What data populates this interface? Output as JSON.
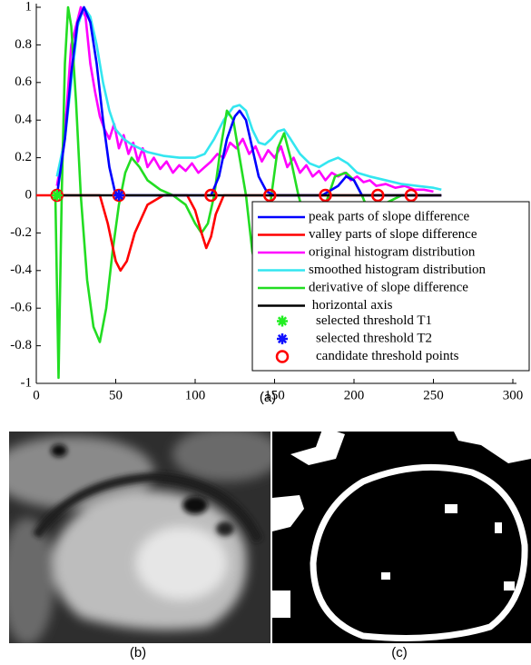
{
  "chart_data": {
    "type": "line",
    "xlim": [
      0,
      300
    ],
    "xticks": [
      0,
      50,
      100,
      150,
      200,
      250,
      300
    ],
    "ylim": [
      -1,
      1
    ],
    "yticks": [
      -1,
      -0.8,
      -0.6,
      -0.4,
      -0.2,
      0,
      0.2,
      0.4,
      0.6,
      0.8,
      1
    ],
    "legend": "lower right",
    "series": [
      {
        "name": "peak parts of slope difference",
        "color": "#0000ff",
        "style": "line",
        "x": [
          13,
          18,
          22,
          26,
          30,
          34,
          38,
          42,
          46,
          50,
          60,
          100,
          110,
          115,
          120,
          125,
          128,
          132,
          136,
          140,
          145,
          150,
          180,
          190,
          195,
          200,
          205,
          215,
          255
        ],
        "values": [
          0,
          0.3,
          0.65,
          0.92,
          1,
          0.92,
          0.7,
          0.4,
          0.15,
          0,
          0,
          0,
          0,
          0.1,
          0.3,
          0.42,
          0.45,
          0.4,
          0.25,
          0.1,
          0.02,
          0,
          0,
          0.05,
          0.1,
          0.08,
          0,
          0,
          0
        ]
      },
      {
        "name": "valley parts of slope difference",
        "color": "#ff0000",
        "style": "line",
        "x": [
          0,
          13,
          40,
          45,
          50,
          53,
          57,
          62,
          70,
          80,
          95,
          100,
          104,
          107,
          110,
          113,
          118,
          150,
          255
        ],
        "values": [
          0,
          0,
          0,
          -0.15,
          -0.35,
          -0.4,
          -0.35,
          -0.2,
          -0.05,
          0,
          0,
          -0.08,
          -0.2,
          -0.28,
          -0.22,
          -0.1,
          0,
          0,
          0
        ]
      },
      {
        "name": "original histogram distribution",
        "color": "#ff00ff",
        "style": "line",
        "x": [
          13,
          16,
          19,
          22,
          25,
          28,
          31,
          34,
          37,
          40,
          43,
          46,
          49,
          52,
          55,
          58,
          61,
          64,
          67,
          70,
          74,
          78,
          82,
          86,
          90,
          94,
          98,
          102,
          106,
          110,
          114,
          118,
          122,
          126,
          130,
          134,
          138,
          142,
          146,
          150,
          154,
          158,
          162,
          166,
          170,
          174,
          178,
          182,
          186,
          190,
          194,
          198,
          202,
          206,
          210,
          214,
          220,
          226,
          232,
          238,
          244,
          250
        ],
        "values": [
          0.05,
          0.2,
          0.45,
          0.8,
          0.9,
          1,
          0.95,
          0.7,
          0.55,
          0.42,
          0.35,
          0.3,
          0.38,
          0.25,
          0.32,
          0.22,
          0.28,
          0.18,
          0.25,
          0.15,
          0.2,
          0.14,
          0.18,
          0.12,
          0.16,
          0.13,
          0.17,
          0.12,
          0.15,
          0.18,
          0.22,
          0.2,
          0.28,
          0.25,
          0.3,
          0.22,
          0.26,
          0.18,
          0.24,
          0.2,
          0.26,
          0.15,
          0.2,
          0.12,
          0.16,
          0.1,
          0.13,
          0.08,
          0.12,
          0.1,
          0.12,
          0.08,
          0.1,
          0.07,
          0.08,
          0.05,
          0.06,
          0.04,
          0.05,
          0.03,
          0.03,
          0.02
        ]
      },
      {
        "name": "smoothed histogram distribution",
        "color": "#33e6f0",
        "style": "line",
        "x": [
          13,
          18,
          22,
          26,
          30,
          34,
          38,
          42,
          46,
          50,
          55,
          60,
          70,
          80,
          90,
          100,
          106,
          112,
          118,
          124,
          128,
          132,
          136,
          140,
          144,
          148,
          152,
          156,
          160,
          166,
          172,
          178,
          184,
          190,
          196,
          202,
          210,
          220,
          230,
          240,
          250,
          255
        ],
        "values": [
          0.1,
          0.3,
          0.6,
          0.9,
          1,
          0.95,
          0.8,
          0.6,
          0.45,
          0.35,
          0.3,
          0.27,
          0.23,
          0.21,
          0.2,
          0.2,
          0.22,
          0.3,
          0.4,
          0.47,
          0.48,
          0.45,
          0.35,
          0.28,
          0.27,
          0.3,
          0.34,
          0.35,
          0.3,
          0.22,
          0.17,
          0.15,
          0.18,
          0.2,
          0.17,
          0.12,
          0.1,
          0.08,
          0.06,
          0.05,
          0.04,
          0.03
        ]
      },
      {
        "name": "derivative of slope difference",
        "color": "#22dd22",
        "style": "line",
        "x": [
          12,
          14,
          16,
          18,
          20,
          22,
          25,
          28,
          32,
          36,
          40,
          44,
          48,
          52,
          56,
          60,
          65,
          70,
          78,
          86,
          94,
          100,
          104,
          108,
          112,
          116,
          120,
          124,
          128,
          132,
          136,
          140,
          144,
          148,
          152,
          156,
          160,
          165,
          170,
          175,
          182,
          188,
          195,
          200,
          205,
          210,
          218,
          230,
          250
        ],
        "values": [
          0,
          -0.97,
          0,
          0.7,
          1,
          0.9,
          0.5,
          0,
          -0.45,
          -0.7,
          -0.78,
          -0.6,
          -0.3,
          -0.05,
          0.12,
          0.2,
          0.15,
          0.08,
          0.03,
          0,
          -0.05,
          -0.15,
          -0.2,
          -0.15,
          0,
          0.25,
          0.45,
          0.4,
          0.2,
          0,
          -0.3,
          -0.45,
          -0.3,
          0,
          0.25,
          0.33,
          0.2,
          0,
          -0.15,
          -0.2,
          -0.05,
          0.1,
          0.12,
          0.08,
          0,
          -0.1,
          -0.05,
          0,
          0
        ]
      },
      {
        "name": " horizontal axis",
        "color": "#000000",
        "style": "line",
        "x": [
          12,
          255
        ],
        "values": [
          0,
          0
        ]
      },
      {
        "name": "selected threshold T1",
        "color": "#22ee22",
        "style": "asterisk",
        "x": [
          13
        ],
        "values": [
          0
        ]
      },
      {
        "name": "selected threshold T2",
        "color": "#1010ff",
        "style": "asterisk",
        "x": [
          52
        ],
        "values": [
          0
        ]
      },
      {
        "name": "candidate threshold points",
        "color": "#ff0000",
        "style": "circle",
        "x": [
          13,
          52,
          110,
          147,
          182,
          215,
          236
        ],
        "values": [
          0,
          0,
          0,
          0,
          0,
          0,
          0
        ]
      }
    ]
  },
  "captions": [
    "(a)",
    "(b)",
    "(c)"
  ]
}
